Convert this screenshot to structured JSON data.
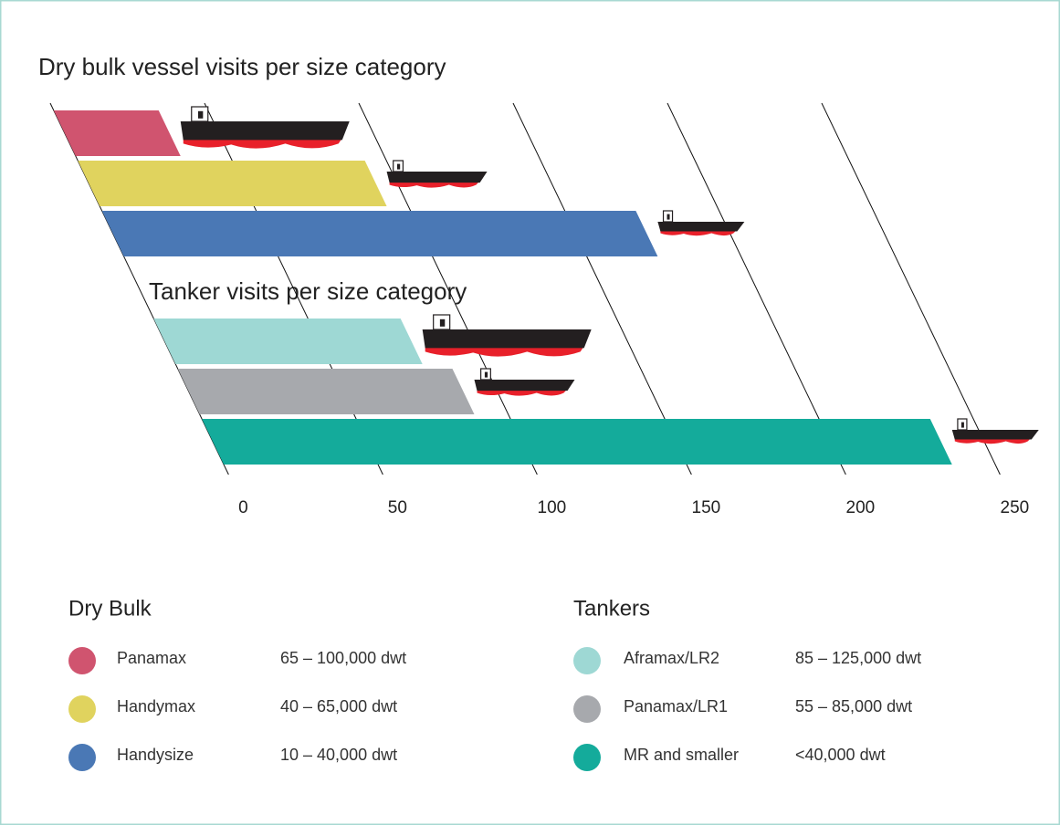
{
  "chart_data": {
    "type": "bar",
    "xlim": [
      0,
      250
    ],
    "xticks": [
      0,
      50,
      100,
      150,
      200,
      250
    ],
    "grid": true,
    "groups": [
      {
        "title": "Dry bulk vessel visits per size category",
        "legend_title": "Dry Bulk",
        "series": [
          {
            "name": "Panamax",
            "description": "65 – 100,000 dwt",
            "color": "#d0546f",
            "value": 34
          },
          {
            "name": "Handymax",
            "description": "40 – 65,000 dwt",
            "color": "#e0d35e",
            "value": 93
          },
          {
            "name": "Handysize",
            "description": "10 – 40,000 dwt",
            "color": "#4a78b5",
            "value": 173
          }
        ]
      },
      {
        "title": "Tanker visits per size category",
        "legend_title": "Tankers",
        "series": [
          {
            "name": "Aframax/LR2",
            "description": "85 – 125,000 dwt",
            "color": "#9ed8d4",
            "value": 80
          },
          {
            "name": "Panamax/LR1",
            "description": "55 – 85,000 dwt",
            "color": "#a7a9ad",
            "value": 89
          },
          {
            "name": "MR and smaller",
            "description": "<40,000 dwt",
            "color": "#14ab9b",
            "value": 236
          }
        ]
      }
    ]
  }
}
